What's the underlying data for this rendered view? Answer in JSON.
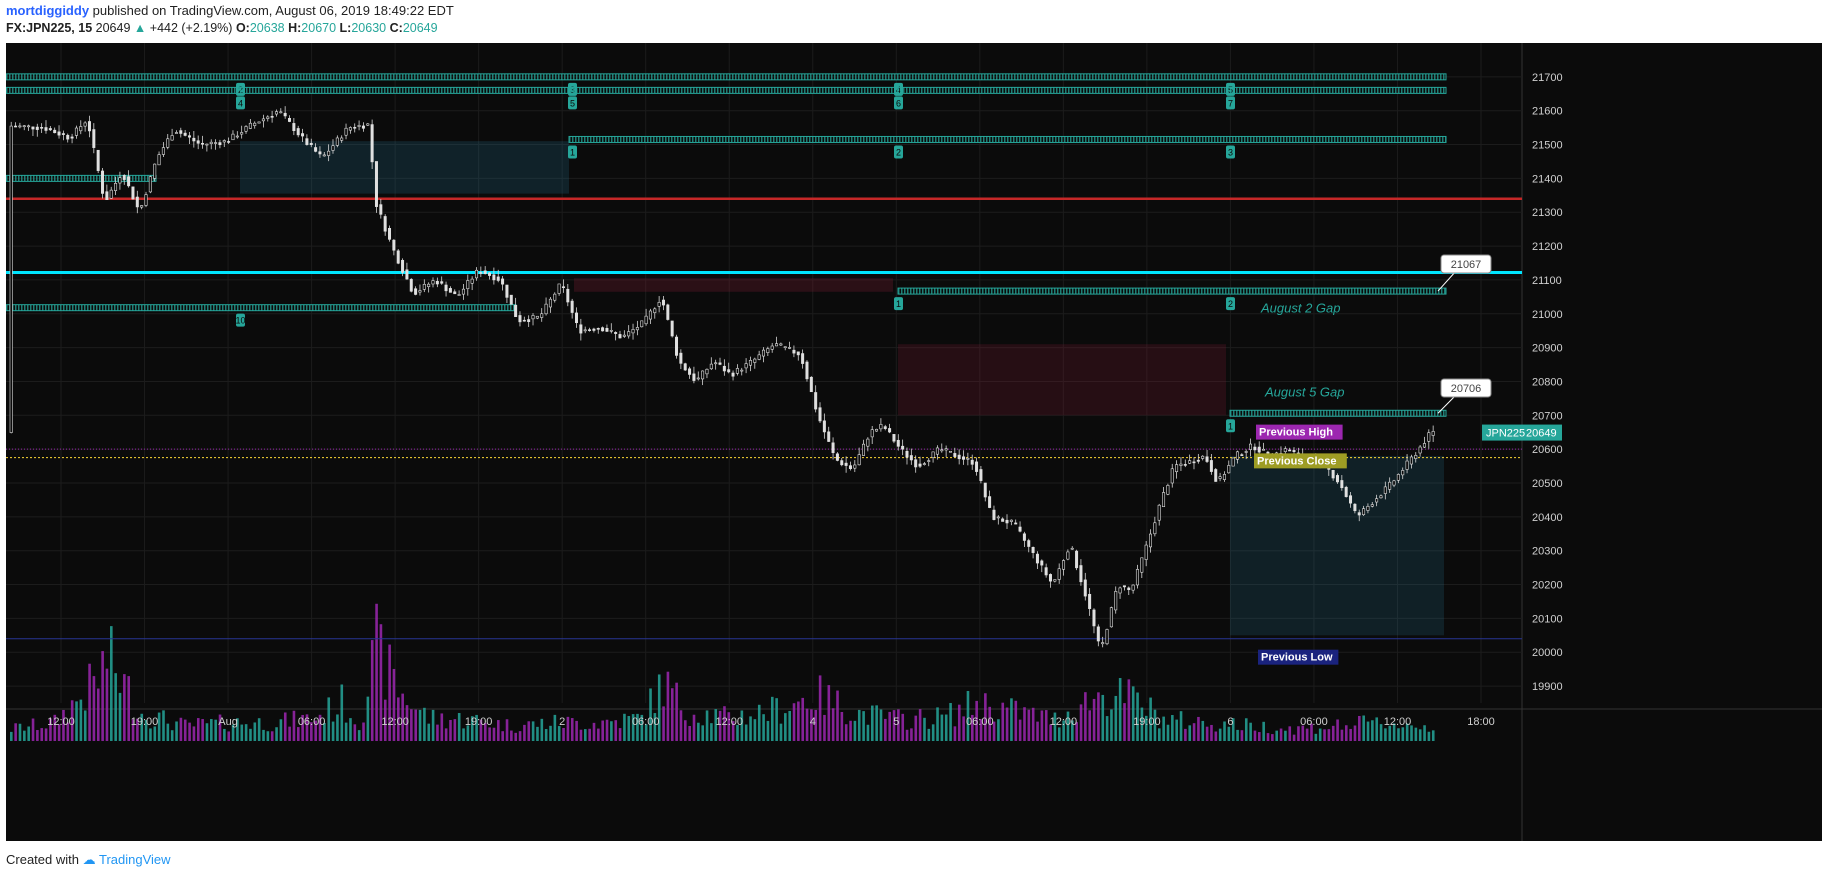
{
  "header": {
    "author": "mortdiggiddy",
    "published": "published on TradingView.com, August 06, 2019 18:49:22 EDT",
    "symbol": "FX:JPN225, 15",
    "last": "20649",
    "change": "+442 (+2.19%)",
    "o_label": "O:",
    "o": "20638",
    "h_label": "H:",
    "h": "20670",
    "l_label": "L:",
    "l": "20630",
    "c_label": "C:",
    "c": "20649"
  },
  "footer": {
    "created": "Created with",
    "brand": "TradingView"
  },
  "colors": {
    "background": "#0b0b0b",
    "up_volume": "#26a69a",
    "down_volume": "#9c27b0",
    "zone_line": "#26a69a",
    "cyan_line": "#00e5ff",
    "red_line": "#c62828"
  },
  "chart_data": {
    "type": "candlestick",
    "symbol": "JPN225",
    "interval": "15",
    "y_axis": {
      "min": 19850,
      "max": 21800,
      "ticks": [
        19900,
        20000,
        20100,
        20200,
        20300,
        20400,
        20500,
        20600,
        20700,
        20800,
        20900,
        21000,
        21100,
        21200,
        21300,
        21400,
        21500,
        21600,
        21700
      ]
    },
    "x_ticks": [
      "12:00",
      "19:00",
      "Aug",
      "06:00",
      "12:00",
      "19:00",
      "2",
      "06:00",
      "12:00",
      "4",
      "5",
      "06:00",
      "12:00",
      "19:00",
      "6",
      "06:00",
      "12:00",
      "18:00"
    ],
    "last_price_label": "JPN225",
    "last_price": "20649",
    "price_path": [
      [
        0,
        21555
      ],
      [
        8,
        21550
      ],
      [
        14,
        21520
      ],
      [
        18,
        21575
      ],
      [
        22,
        21330
      ],
      [
        26,
        21420
      ],
      [
        30,
        21300
      ],
      [
        34,
        21460
      ],
      [
        38,
        21545
      ],
      [
        44,
        21500
      ],
      [
        50,
        21510
      ],
      [
        56,
        21560
      ],
      [
        62,
        21600
      ],
      [
        68,
        21510
      ],
      [
        72,
        21460
      ],
      [
        78,
        21550
      ],
      [
        83,
        21560
      ],
      [
        84,
        21340
      ],
      [
        88,
        21200
      ],
      [
        93,
        21060
      ],
      [
        98,
        21100
      ],
      [
        103,
        21050
      ],
      [
        108,
        21130
      ],
      [
        113,
        21100
      ],
      [
        117,
        20980
      ],
      [
        122,
        20990
      ],
      [
        127,
        21090
      ],
      [
        131,
        20950
      ],
      [
        136,
        20960
      ],
      [
        141,
        20930
      ],
      [
        146,
        20975
      ],
      [
        150,
        21050
      ],
      [
        154,
        20860
      ],
      [
        158,
        20800
      ],
      [
        162,
        20860
      ],
      [
        166,
        20820
      ],
      [
        171,
        20860
      ],
      [
        176,
        20910
      ],
      [
        182,
        20880
      ],
      [
        186,
        20700
      ],
      [
        190,
        20570
      ],
      [
        194,
        20540
      ],
      [
        198,
        20650
      ],
      [
        201,
        20670
      ],
      [
        205,
        20600
      ],
      [
        209,
        20550
      ],
      [
        214,
        20600
      ],
      [
        218,
        20580
      ],
      [
        222,
        20560
      ],
      [
        226,
        20400
      ],
      [
        231,
        20380
      ],
      [
        235,
        20300
      ],
      [
        240,
        20200
      ],
      [
        244,
        20320
      ],
      [
        248,
        20150
      ],
      [
        251,
        20000
      ],
      [
        255,
        20200
      ],
      [
        258,
        20180
      ],
      [
        262,
        20330
      ],
      [
        265,
        20450
      ],
      [
        268,
        20550
      ],
      [
        271,
        20560
      ],
      [
        275,
        20580
      ],
      [
        278,
        20500
      ],
      [
        282,
        20580
      ],
      [
        286,
        20610
      ],
      [
        290,
        20580
      ],
      [
        294,
        20600
      ],
      [
        298,
        20570
      ],
      [
        302,
        20560
      ],
      [
        306,
        20500
      ],
      [
        310,
        20400
      ],
      [
        314,
        20450
      ],
      [
        318,
        20500
      ],
      [
        323,
        20580
      ],
      [
        327,
        20649
      ]
    ],
    "volume_profile": [
      [
        0,
        8
      ],
      [
        10,
        12
      ],
      [
        20,
        40
      ],
      [
        22,
        55
      ],
      [
        30,
        18
      ],
      [
        40,
        10
      ],
      [
        50,
        12
      ],
      [
        60,
        12
      ],
      [
        70,
        15
      ],
      [
        76,
        25
      ],
      [
        80,
        12
      ],
      [
        84,
        60
      ],
      [
        86,
        48
      ],
      [
        90,
        30
      ],
      [
        96,
        15
      ],
      [
        105,
        14
      ],
      [
        115,
        10
      ],
      [
        125,
        12
      ],
      [
        135,
        12
      ],
      [
        145,
        15
      ],
      [
        150,
        38
      ],
      [
        155,
        20
      ],
      [
        165,
        15
      ],
      [
        175,
        20
      ],
      [
        185,
        30
      ],
      [
        195,
        18
      ],
      [
        205,
        14
      ],
      [
        215,
        16
      ],
      [
        222,
        25
      ],
      [
        230,
        20
      ],
      [
        240,
        14
      ],
      [
        245,
        22
      ],
      [
        250,
        30
      ],
      [
        258,
        28
      ],
      [
        265,
        14
      ],
      [
        275,
        12
      ],
      [
        285,
        10
      ],
      [
        295,
        8
      ],
      [
        305,
        10
      ],
      [
        315,
        12
      ],
      [
        327,
        9
      ]
    ],
    "volume_axis": {
      "min": 0,
      "max": 100
    },
    "horizontal_lines": [
      {
        "price": 21340,
        "label": "",
        "color": "#c62828"
      },
      {
        "price": 21122,
        "label": "",
        "color": "#00e5ff"
      },
      {
        "price": 20600,
        "label": "",
        "color": "#9c27b0"
      },
      {
        "price": 20575,
        "label": "",
        "color": "#fdd835"
      },
      {
        "price": 20040,
        "label": "",
        "color": "#283593"
      }
    ],
    "zone_lines": [
      {
        "price": 21700,
        "markers": [
          "2",
          "3",
          "4",
          "5"
        ]
      },
      {
        "price": 21660,
        "markers": [
          "4",
          "5",
          "6",
          "7"
        ]
      },
      {
        "price": 21515,
        "markers": [
          "1",
          "2",
          "3"
        ]
      },
      {
        "price": 21400,
        "markers": []
      },
      {
        "price": 21018,
        "markers": [
          "10"
        ]
      },
      {
        "price": 21067,
        "markers": [
          "1",
          "2"
        ]
      },
      {
        "price": 20706,
        "markers": [
          "1"
        ]
      }
    ],
    "shaded_regions": [
      {
        "price_from": 21510,
        "price_to": 21355
      },
      {
        "price_from": 21105,
        "price_to": 21065
      },
      {
        "price_from": 20910,
        "price_to": 20700
      },
      {
        "price_from": 20580,
        "price_to": 20050
      }
    ],
    "annotations": [
      {
        "text": "August 2 Gap"
      },
      {
        "text": "August 5 Gap"
      },
      {
        "text": "21067"
      },
      {
        "text": "20706"
      },
      {
        "text": "Previous High"
      },
      {
        "text": "Previous Close"
      },
      {
        "text": "Previous Low"
      }
    ]
  }
}
